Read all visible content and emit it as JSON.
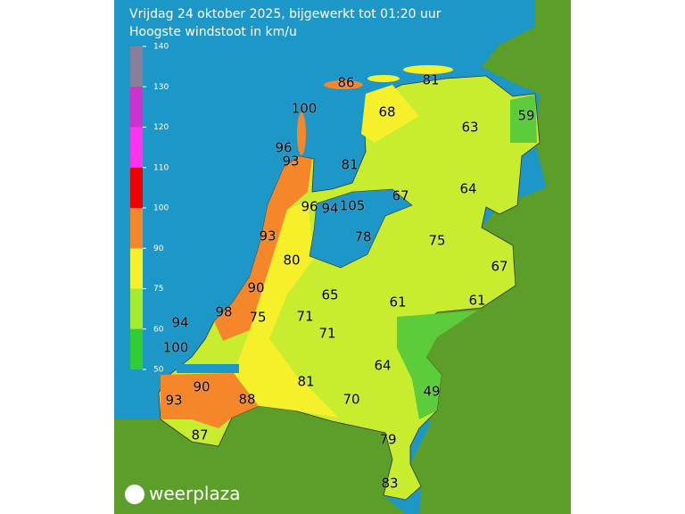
{
  "title": "Vrijdag 24 oktober 2025, bijgewerkt tot 01:20 uur",
  "subtitle": "Hoogste windstoot in km/u",
  "legend": {
    "ticks": [
      50,
      60,
      75,
      90,
      100,
      110,
      120,
      130,
      140
    ],
    "colors": [
      "#33cc33",
      "#a6ec2e",
      "#f5f02a",
      "#f5872a",
      "#ee0000",
      "#ff33ee",
      "#cc33cc",
      "#8a7f9a"
    ]
  },
  "labels": [
    "86",
    "81",
    "100",
    "68",
    "63",
    "59",
    "96",
    "93",
    "81",
    "67",
    "64",
    "96",
    "94",
    "105",
    "78",
    "75",
    "93",
    "80",
    "67",
    "90",
    "65",
    "61",
    "61",
    "98",
    "75",
    "71",
    "94",
    "71",
    "100",
    "64",
    "81",
    "90",
    "49",
    "88",
    "70",
    "93",
    "87",
    "79",
    "83"
  ],
  "logo": "weerplaza"
}
